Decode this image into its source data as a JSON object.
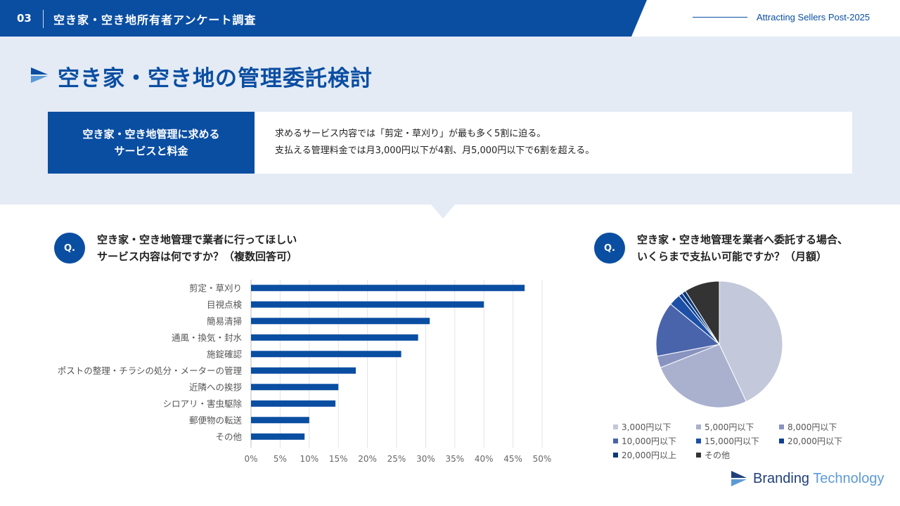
{
  "header": {
    "number": "03",
    "title": "空き家・空き地所有者アンケート調査",
    "subtitle": "Attracting Sellers Post-2025"
  },
  "page": {
    "title": "空き家・空き地の管理委託検討"
  },
  "summary": {
    "label_line1": "空き家・空き地管理に求める",
    "label_line2": "サービスと料金",
    "text_line1": "求めるサービス内容では「剪定・草刈り」が最も多く5割に迫る。",
    "text_line2": "支払える管理料金では月3,000円以下が4割、月5,000円以下で6割を超える。"
  },
  "q1": {
    "badge": "Q.",
    "line1": "空き家・空き地管理で業者に行ってほしい",
    "line2": "サービス内容は何ですか？（複数回答可）"
  },
  "q2": {
    "badge": "Q.",
    "line1": "空き家・空き地管理を業者へ委託する場合、",
    "line2": "いくらまで支払い可能ですか？（月額）"
  },
  "logo": {
    "part1": "Branding",
    "part2": "Technology"
  },
  "colors": {
    "brand": "#0a4ea2",
    "band": "#e4ebf5"
  },
  "chart_data": [
    {
      "type": "bar",
      "orientation": "horizontal",
      "categories": [
        "剪定・草刈り",
        "目視点検",
        "簡易清掃",
        "通風・換気・封水",
        "施錠確認",
        "ポストの整理・チラシの処分・メーターの管理",
        "近隣への挨拶",
        "シロアリ・害虫駆除",
        "郵便物の転送",
        "その他"
      ],
      "values": [
        47,
        40,
        30.7,
        28.7,
        25.8,
        18,
        15,
        14.5,
        10,
        9.2
      ],
      "xlim": [
        0,
        50
      ],
      "ticks": [
        "0%",
        "5%",
        "10%",
        "15%",
        "20%",
        "25%",
        "30%",
        "35%",
        "40%",
        "45%",
        "50%"
      ],
      "grid": true,
      "color": "#0a4ea2"
    },
    {
      "type": "pie",
      "labels": [
        "3,000円以下",
        "5,000円以下",
        "8,000円以下",
        "10,000円以下",
        "15,000円以下",
        "20,000円以下",
        "20,000円以上",
        "その他"
      ],
      "values": [
        43,
        26,
        3,
        14,
        3,
        1,
        1,
        9
      ],
      "colors": [
        "#c3c8db",
        "#a9b1ce",
        "#8993bf",
        "#4a64ab",
        "#1c4fa6",
        "#0f3f8f",
        "#0b3978",
        "#333333"
      ],
      "legend": "bottom"
    }
  ]
}
